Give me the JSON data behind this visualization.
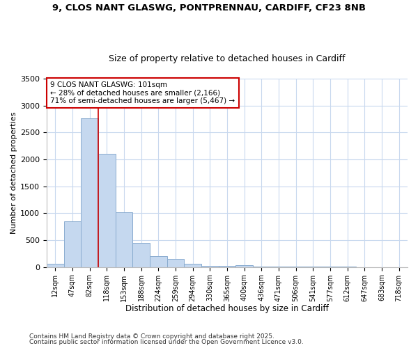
{
  "title1": "9, CLOS NANT GLASWG, PONTPRENNAU, CARDIFF, CF23 8NB",
  "title2": "Size of property relative to detached houses in Cardiff",
  "xlabel": "Distribution of detached houses by size in Cardiff",
  "ylabel": "Number of detached properties",
  "categories": [
    "12sqm",
    "47sqm",
    "82sqm",
    "118sqm",
    "153sqm",
    "188sqm",
    "224sqm",
    "259sqm",
    "294sqm",
    "330sqm",
    "365sqm",
    "400sqm",
    "436sqm",
    "471sqm",
    "506sqm",
    "541sqm",
    "577sqm",
    "612sqm",
    "647sqm",
    "683sqm",
    "718sqm"
  ],
  "values": [
    60,
    850,
    2760,
    2100,
    1020,
    450,
    200,
    150,
    60,
    25,
    25,
    40,
    10,
    10,
    5,
    3,
    2,
    2,
    1,
    1,
    1
  ],
  "bar_color": "#c5d8ef",
  "bar_edgecolor": "#8aaccf",
  "vline_x": 2.5,
  "vline_color": "#cc0000",
  "ylim": [
    0,
    3500
  ],
  "yticks": [
    0,
    500,
    1000,
    1500,
    2000,
    2500,
    3000,
    3500
  ],
  "annotation_title": "9 CLOS NANT GLASWG: 101sqm",
  "annotation_line1": "← 28% of detached houses are smaller (2,166)",
  "annotation_line2": "71% of semi-detached houses are larger (5,467) →",
  "annotation_box_color": "#cc0000",
  "footer1": "Contains HM Land Registry data © Crown copyright and database right 2025.",
  "footer2": "Contains public sector information licensed under the Open Government Licence v3.0.",
  "bg_color": "#ffffff",
  "plot_bg_color": "#ffffff",
  "grid_color": "#c8d8ee"
}
